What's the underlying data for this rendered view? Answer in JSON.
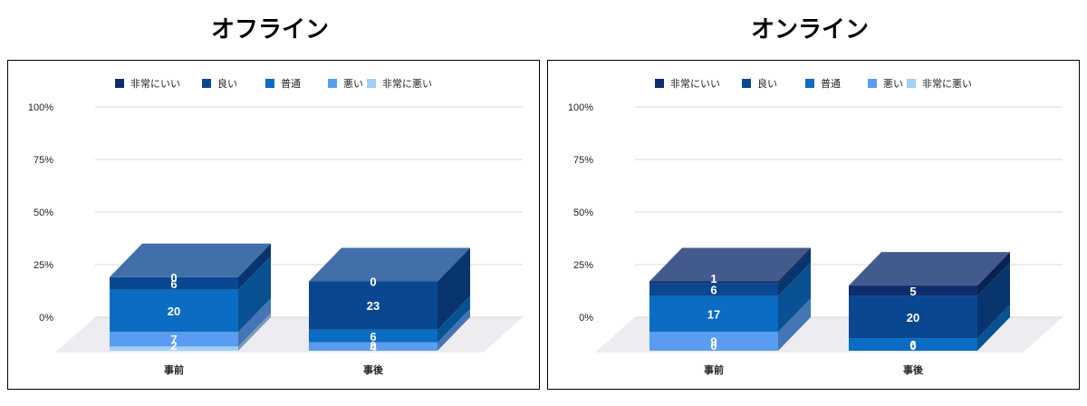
{
  "legend": [
    "非常にいい",
    "良い",
    "普通",
    "悪い",
    "非常に悪い"
  ],
  "colors": [
    "#0d2d6c",
    "#0a4791",
    "#0a6cc2",
    "#5a9cf0",
    "#9fd0f7"
  ],
  "chart_data": [
    {
      "type": "bar",
      "stacked": true,
      "three_d": true,
      "title": "オフライン",
      "categories": [
        "事前",
        "事後"
      ],
      "ylim": [
        0,
        100
      ],
      "y_ticks": [
        "0%",
        "25%",
        "50%",
        "75%",
        "100%"
      ],
      "legend_position": "top",
      "series": [
        {
          "name": "非常にいい",
          "values": [
            0,
            0
          ]
        },
        {
          "name": "良い",
          "values": [
            6,
            23
          ]
        },
        {
          "name": "普通",
          "values": [
            20,
            6
          ]
        },
        {
          "name": "悪い",
          "values": [
            7,
            4
          ]
        },
        {
          "name": "非常に悪い",
          "values": [
            2,
            0
          ]
        }
      ]
    },
    {
      "type": "bar",
      "stacked": true,
      "three_d": true,
      "title": "オンライン",
      "categories": [
        "事前",
        "事後"
      ],
      "ylim": [
        0,
        100
      ],
      "y_ticks": [
        "0%",
        "25%",
        "50%",
        "75%",
        "100%"
      ],
      "legend_position": "top",
      "series": [
        {
          "name": "非常にいい",
          "values": [
            1,
            5
          ]
        },
        {
          "name": "良い",
          "values": [
            6,
            20
          ]
        },
        {
          "name": "普通",
          "values": [
            17,
            6
          ]
        },
        {
          "name": "悪い",
          "values": [
            9,
            0
          ]
        },
        {
          "name": "非常に悪い",
          "values": [
            0,
            0
          ]
        }
      ]
    }
  ]
}
